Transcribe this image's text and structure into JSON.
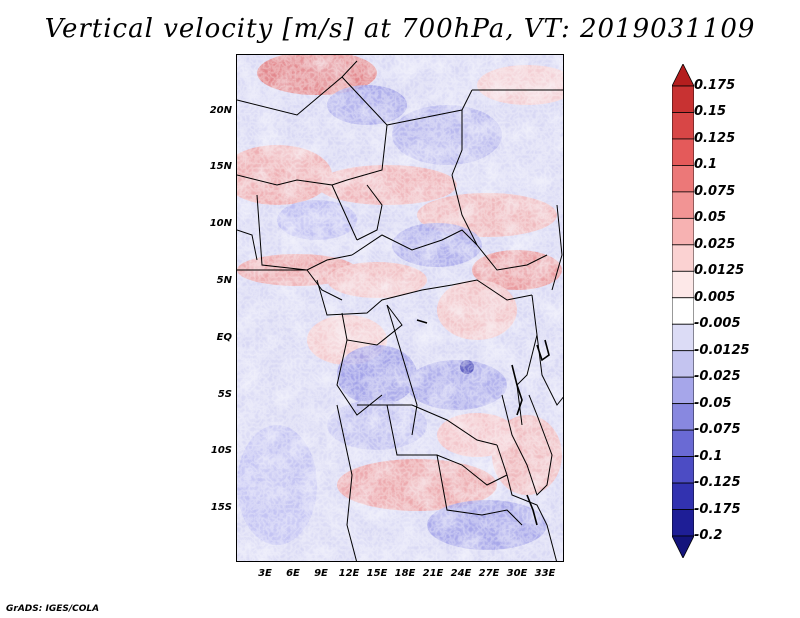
{
  "title": "Vertical velocity [m/s] at 700hPa, VT: 2019031109",
  "lat_labels": [
    "20N",
    "15N",
    "10N",
    "5N",
    "EQ",
    "5S",
    "10S",
    "15S"
  ],
  "lon_labels": [
    "3E",
    "6E",
    "9E",
    "12E",
    "15E",
    "18E",
    "21E",
    "24E",
    "27E",
    "30E",
    "33E"
  ],
  "colorbar": {
    "labels": [
      "0.175",
      "0.15",
      "0.125",
      "0.1",
      "0.075",
      "0.05",
      "0.025",
      "0.0125",
      "0.005",
      "-0.005",
      "-0.0125",
      "-0.025",
      "-0.05",
      "-0.075",
      "-0.1",
      "-0.125",
      "-0.175",
      "-0.2"
    ],
    "colors": [
      "#b41e1e",
      "#c83232",
      "#d84646",
      "#e45a5a",
      "#ec7878",
      "#f29494",
      "#f7b2b2",
      "#fbd2d2",
      "#fde8e8",
      "#ffffff",
      "#dcdcf6",
      "#c4c4f0",
      "#a6a6ea",
      "#8888e0",
      "#6a6ad4",
      "#4c4cc4",
      "#3232b0",
      "#1e1e96",
      "#14147c"
    ]
  },
  "footer": "GrADS: IGES/COLA"
}
